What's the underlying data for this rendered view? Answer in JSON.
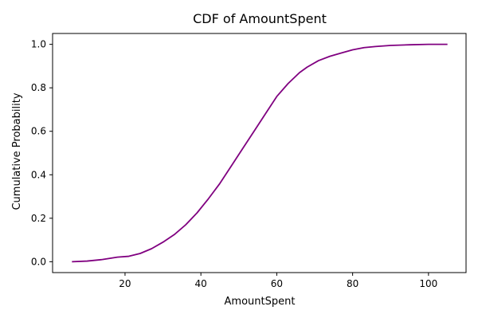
{
  "chart_data": {
    "type": "line",
    "title": "CDF of AmountSpent",
    "xlabel": "AmountSpent",
    "ylabel": "Cumulative Probability",
    "xlim": [
      0.9,
      109.9
    ],
    "ylim": [
      -0.05,
      1.05
    ],
    "xticks": [
      20,
      40,
      60,
      80,
      100
    ],
    "yticks": [
      0.0,
      0.2,
      0.4,
      0.6,
      0.8,
      1.0
    ],
    "ytick_labels": [
      "0.0",
      "0.2",
      "0.4",
      "0.6",
      "0.8",
      "1.0"
    ],
    "grid": false,
    "legend": "none",
    "line_color": "#800080",
    "series": [
      {
        "x": [
          6,
          10,
          14,
          18,
          21,
          24,
          27,
          30,
          33,
          36,
          39,
          42,
          45,
          48,
          51,
          54,
          57,
          60,
          63,
          66,
          68,
          71,
          74,
          77,
          80,
          83,
          86,
          90,
          95,
          100,
          105
        ],
        "y": [
          0.0,
          0.003,
          0.01,
          0.021,
          0.025,
          0.038,
          0.06,
          0.09,
          0.125,
          0.17,
          0.225,
          0.29,
          0.36,
          0.44,
          0.52,
          0.6,
          0.68,
          0.76,
          0.82,
          0.87,
          0.895,
          0.925,
          0.945,
          0.96,
          0.975,
          0.985,
          0.99,
          0.995,
          0.998,
          1.0,
          1.0
        ]
      }
    ]
  }
}
